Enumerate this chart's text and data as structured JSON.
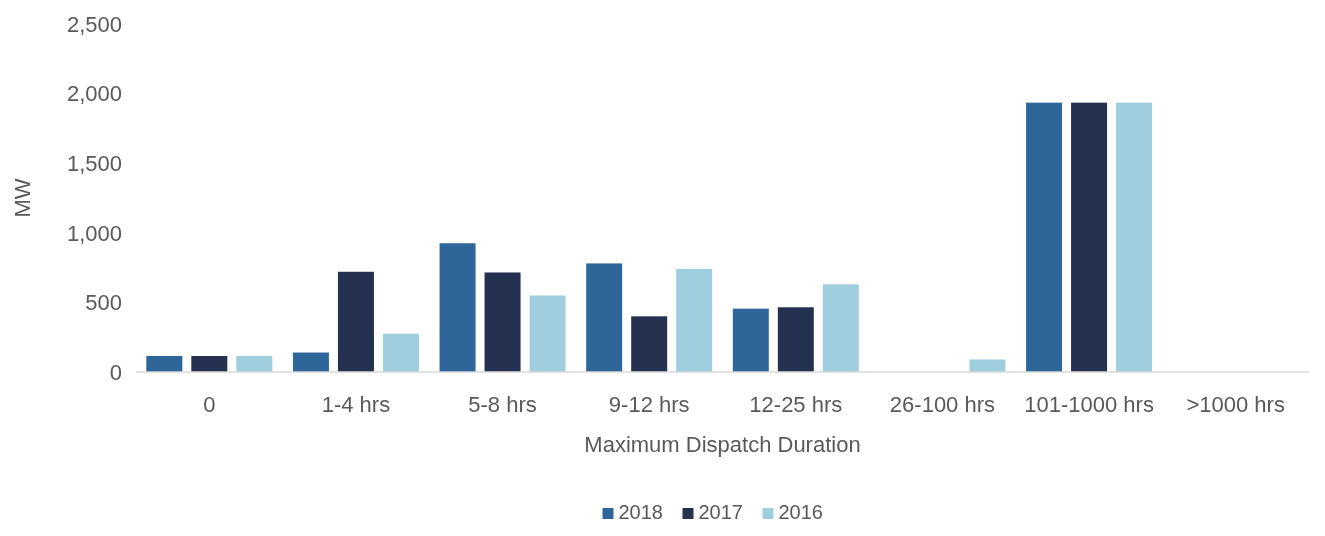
{
  "chart_data": {
    "type": "bar",
    "xlabel": "Maximum Dispatch Duration",
    "ylabel": "MW",
    "categories": [
      "0",
      "1-4 hrs",
      "5-8 hrs",
      "9-12 hrs",
      "12-25 hrs",
      "26-100 hrs",
      "101-1000 hrs",
      ">1000 hrs"
    ],
    "series": [
      {
        "name": "2018",
        "color": "#2e6699",
        "values": [
          115,
          140,
          925,
          780,
          455,
          0,
          1935,
          0
        ]
      },
      {
        "name": "2017",
        "color": "#253151",
        "values": [
          115,
          720,
          715,
          400,
          465,
          0,
          1935,
          0
        ]
      },
      {
        "name": "2016",
        "color": "#9fcfdf",
        "values": [
          115,
          275,
          550,
          740,
          630,
          90,
          1935,
          0
        ]
      }
    ],
    "ylim": [
      0,
      2500
    ],
    "yticks": [
      {
        "value": 0,
        "label": "0"
      },
      {
        "value": 500,
        "label": "500"
      },
      {
        "value": 1000,
        "label": "1,000"
      },
      {
        "value": 1500,
        "label": "1,500"
      },
      {
        "value": 2000,
        "label": "2,000"
      },
      {
        "value": 2500,
        "label": "2,500"
      }
    ],
    "grid": false,
    "legend": "bottom"
  }
}
